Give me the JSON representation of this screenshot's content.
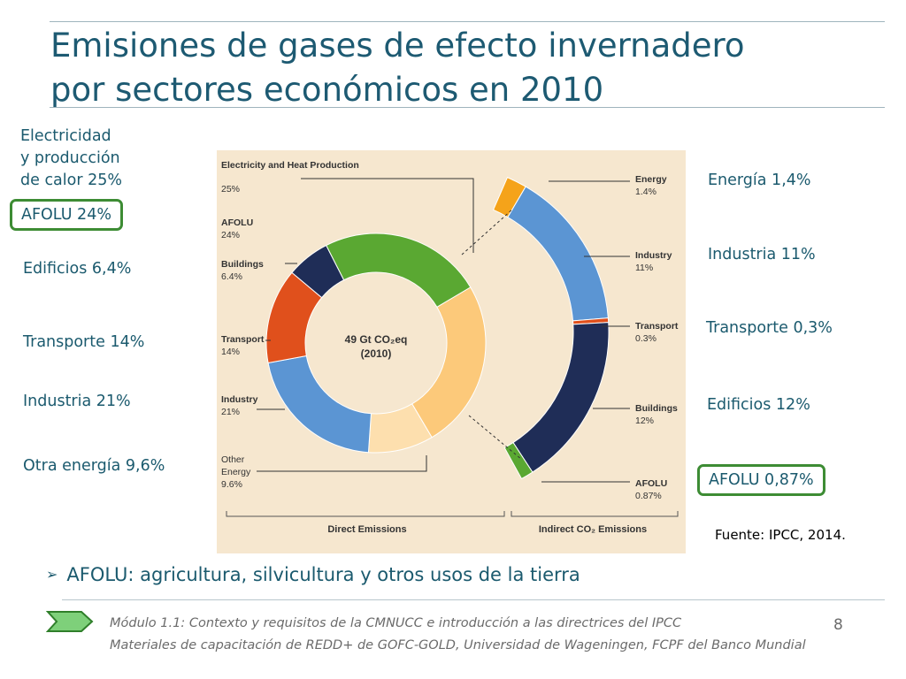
{
  "slide": {
    "title_line1": "Emisiones de gases de efecto invernadero",
    "title_line2": "por sectores económicos en 2010",
    "source": "Fuente: IPCC, 2014.",
    "bullet": "AFOLU: agricultura, silvicultura y otros usos de la tierra",
    "footer_line1": "Módulo 1.1: Contexto y requisitos de la CMNUCC e introducción a las directrices del IPCC",
    "footer_line2": "Materiales de capacitación de REDD+ de GOFC-GOLD, Universidad de Wageningen, FCPF del Banco Mundial",
    "page_number": "8"
  },
  "labels_left": {
    "electricity": [
      "Electricidad",
      "y producción",
      "de calor 25%"
    ],
    "afolu": "AFOLU 24%",
    "buildings": "Edificios 6,4%",
    "transport": "Transporte 14%",
    "industry": "Industria 21%",
    "other_energy": "Otra energía 9,6%"
  },
  "labels_right": {
    "energy": "Energía 1,4%",
    "industry": "Industria 11%",
    "transport": "Transporte 0,3%",
    "buildings": "Edificios 12%",
    "afolu": "AFOLU 0,87%"
  },
  "colors": {
    "highlight_box": "#3d8c34",
    "electricity_direct": "#fcc97a",
    "electricity_indirect": "#fddfae",
    "afolu": "#5aa832",
    "buildings": "#1f2d57",
    "transport": "#e0501c",
    "industry": "#5b95d3",
    "energy_indirect": "#f5a31a",
    "panel_background": "#f6e7cf"
  },
  "chart_data": {
    "type": "pie",
    "center_label_line1": "49 Gt CO₂eq",
    "center_label_line2": "(2010)",
    "group_labels": [
      "Direct Emissions",
      "Indirect CO₂ Emissions"
    ],
    "direct": [
      {
        "label": "Electricity and Heat Production",
        "value": 25,
        "value_text": "25%"
      },
      {
        "label": "AFOLU",
        "value": 24,
        "value_text": "24%"
      },
      {
        "label": "Buildings",
        "value": 6.4,
        "value_text": "6.4%"
      },
      {
        "label": "Transport",
        "value": 14,
        "value_text": "14%"
      },
      {
        "label": "Industry",
        "value": 21,
        "value_text": "21%"
      },
      {
        "label": "Other Energy",
        "value": 9.6,
        "value_text": "9.6%"
      }
    ],
    "indirect": [
      {
        "label": "Energy",
        "value": 1.4,
        "value_text": "1.4%"
      },
      {
        "label": "Industry",
        "value": 11,
        "value_text": "11%"
      },
      {
        "label": "Transport",
        "value": 0.3,
        "value_text": "0.3%"
      },
      {
        "label": "Buildings",
        "value": 12,
        "value_text": "12%"
      },
      {
        "label": "AFOLU",
        "value": 0.87,
        "value_text": "0.87%"
      }
    ]
  }
}
